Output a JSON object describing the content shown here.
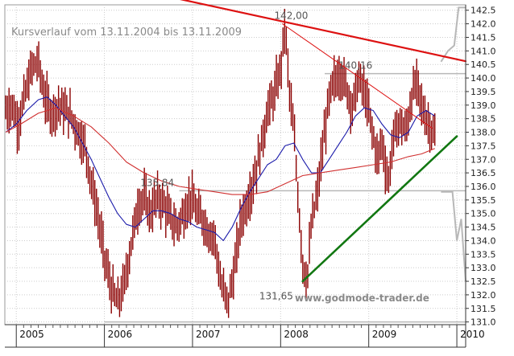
{
  "chart_data": {
    "type": "line",
    "title": "Kursverlauf vom 13.11.2004 bis 13.11.2009",
    "watermark": "www.godmode-trader.de",
    "xlabel": "",
    "ylabel": "",
    "x_ticks": [
      "2005",
      "2006",
      "2007",
      "2008",
      "2009",
      "2010"
    ],
    "x_tick_positions_year": [
      2005,
      2006,
      2007,
      2008,
      2009,
      2010
    ],
    "xlim": [
      2004.87,
      2010.1
    ],
    "y_ticks": [
      "131.0",
      "131.5",
      "132.0",
      "132.5",
      "133.0",
      "133.5",
      "134.0",
      "134.5",
      "135.0",
      "135.5",
      "136.0",
      "136.5",
      "137.0",
      "137.5",
      "138.0",
      "138.5",
      "139.0",
      "139.5",
      "140.0",
      "140.5",
      "141.0",
      "141.5",
      "142.0",
      "142.5"
    ],
    "ylim": [
      130.9,
      142.7
    ],
    "grid": true,
    "colors": {
      "price_bars": "#8b0000",
      "ma_short": "#1a1aaa",
      "ma_long": "#d03030",
      "downtrend": "#dd1111",
      "uptrend": "#117711",
      "levels": "#b8b8b8",
      "title_text": "#8a8a8a"
    },
    "annotations": [
      {
        "label": "142,00",
        "x": 2008.12,
        "y": 142.0
      },
      {
        "label": "140,16",
        "x": 2008.85,
        "y": 140.16
      },
      {
        "label": "135,84",
        "x": 2006.6,
        "y": 135.84
      },
      {
        "label": "131,65",
        "x": 2007.95,
        "y": 131.65
      }
    ],
    "horizontal_levels": [
      {
        "y": 140.16,
        "x_start": 2008.5,
        "x_end": 2010.1
      },
      {
        "y": 135.84,
        "x_start": 2006.85,
        "x_end": 2010.1
      },
      {
        "y": 131.0,
        "x_start": 2006.0,
        "x_end": 2010.1
      }
    ],
    "trendlines": [
      {
        "name": "",
        "role": "resistance",
        "x": [
          2006.8,
          2010.1
        ],
        "y": [
          142.95,
          140.62
        ]
      },
      {
        "name": "",
        "role": "thin-resistance",
        "x": [
          2008.02,
          2009.72
        ],
        "y": [
          142.0,
          138.15
        ]
      },
      {
        "name": "",
        "role": "support",
        "x": [
          2008.25,
          2010.0
        ],
        "y": [
          132.5,
          137.85
        ]
      }
    ],
    "series": [
      {
        "name": "",
        "kind": "price",
        "x": [
          2004.88,
          2004.95,
          2005.02,
          2005.1,
          2005.18,
          2005.25,
          2005.32,
          2005.4,
          2005.48,
          2005.55,
          2005.62,
          2005.7,
          2005.78,
          2005.85,
          2005.92,
          2006.0,
          2006.08,
          2006.15,
          2006.22,
          2006.3,
          2006.38,
          2006.45,
          2006.52,
          2006.6,
          2006.68,
          2006.75,
          2006.82,
          2006.9,
          2006.98,
          2007.05,
          2007.12,
          2007.18,
          2007.25,
          2007.32,
          2007.4,
          2007.48,
          2007.55,
          2007.62,
          2007.7,
          2007.78,
          2007.85,
          2007.92,
          2008.0,
          2008.05,
          2008.1,
          2008.15,
          2008.2,
          2008.25,
          2008.3,
          2008.35,
          2008.42,
          2008.5,
          2008.55,
          2008.6,
          2008.68,
          2008.75,
          2008.82,
          2008.88,
          2008.95,
          2009.02,
          2009.1,
          2009.15,
          2009.22,
          2009.28,
          2009.35,
          2009.42,
          2009.5,
          2009.55,
          2009.6,
          2009.65,
          2009.7,
          2009.75
        ],
        "y": [
          138.8,
          139.0,
          138.3,
          139.4,
          140.4,
          140.6,
          139.3,
          138.7,
          139.0,
          138.8,
          138.6,
          138.0,
          137.5,
          136.2,
          135.0,
          133.4,
          132.2,
          131.7,
          132.3,
          133.8,
          135.3,
          135.6,
          135.0,
          135.6,
          135.3,
          134.8,
          134.5,
          135.0,
          135.6,
          135.0,
          134.8,
          134.3,
          134.2,
          132.4,
          131.7,
          133.0,
          134.8,
          135.4,
          136.3,
          137.5,
          138.8,
          139.3,
          140.3,
          142.0,
          139.5,
          138.0,
          135.5,
          133.2,
          132.5,
          134.6,
          135.8,
          138.0,
          139.2,
          139.8,
          140.2,
          139.6,
          138.9,
          140.0,
          139.5,
          138.4,
          137.0,
          137.7,
          136.1,
          137.8,
          138.4,
          138.0,
          139.5,
          139.8,
          139.0,
          138.5,
          138.2,
          137.8
        ]
      },
      {
        "name": "",
        "kind": "moving-average-short",
        "x": [
          2004.88,
          2005.0,
          2005.12,
          2005.25,
          2005.35,
          2005.45,
          2005.55,
          2005.65,
          2005.75,
          2005.85,
          2005.95,
          2006.05,
          2006.15,
          2006.25,
          2006.35,
          2006.45,
          2006.55,
          2006.65,
          2006.75,
          2006.85,
          2006.95,
          2007.05,
          2007.15,
          2007.25,
          2007.35,
          2007.45,
          2007.55,
          2007.65,
          2007.75,
          2007.85,
          2007.95,
          2008.05,
          2008.15,
          2008.25,
          2008.35,
          2008.45,
          2008.55,
          2008.65,
          2008.75,
          2008.85,
          2008.95,
          2009.05,
          2009.15,
          2009.25,
          2009.35,
          2009.45,
          2009.55,
          2009.65,
          2009.75
        ],
        "y": [
          138.0,
          138.3,
          138.8,
          139.2,
          139.3,
          139.0,
          138.6,
          138.2,
          137.6,
          137.0,
          136.3,
          135.6,
          135.0,
          134.6,
          134.5,
          134.8,
          135.1,
          135.1,
          135.0,
          134.8,
          134.7,
          134.5,
          134.4,
          134.3,
          134.0,
          134.5,
          135.2,
          135.8,
          136.3,
          136.8,
          137.0,
          137.5,
          137.6,
          137.0,
          136.5,
          136.5,
          137.0,
          137.5,
          138.0,
          138.6,
          138.9,
          138.8,
          138.3,
          137.9,
          137.8,
          138.0,
          138.6,
          138.8,
          138.6
        ]
      },
      {
        "name": "",
        "kind": "moving-average-long",
        "x": [
          2004.88,
          2005.05,
          2005.25,
          2005.45,
          2005.65,
          2005.85,
          2006.05,
          2006.25,
          2006.45,
          2006.65,
          2006.85,
          2007.05,
          2007.25,
          2007.45,
          2007.65,
          2007.85,
          2008.05,
          2008.25,
          2008.45,
          2008.65,
          2008.85,
          2009.05,
          2009.25,
          2009.45,
          2009.6,
          2009.75
        ],
        "y": [
          138.0,
          138.3,
          138.7,
          138.9,
          138.6,
          138.2,
          137.6,
          136.9,
          136.5,
          136.2,
          136.0,
          135.9,
          135.8,
          135.7,
          135.7,
          135.8,
          136.1,
          136.4,
          136.5,
          136.6,
          136.7,
          136.8,
          136.9,
          137.1,
          137.2,
          137.4
        ]
      }
    ]
  }
}
